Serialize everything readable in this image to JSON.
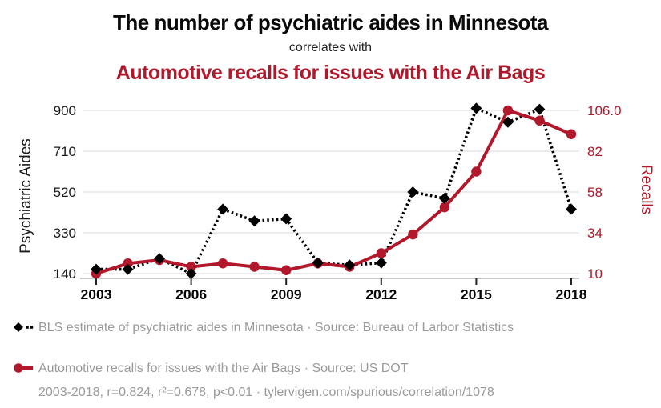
{
  "header": {
    "title_top": "The number of psychiatric aides in Minnesota",
    "connector": "correlates with",
    "title_bottom": "Automotive recalls for issues with the Air Bags"
  },
  "colors": {
    "series_black": "#000000",
    "series_red": "#b2182b",
    "legend_gray": "#9a9a9a",
    "gridline": "#e6e6e6",
    "axis_line": "#c9c9c9",
    "tick_mark": "#222222"
  },
  "chart_data": {
    "type": "line",
    "title": "The number of psychiatric aides in Minnesota correlates with Automotive recalls for issues with the Air Bags",
    "x": [
      2003,
      2004,
      2005,
      2006,
      2007,
      2008,
      2009,
      2010,
      2011,
      2012,
      2013,
      2014,
      2015,
      2016,
      2017,
      2018
    ],
    "x_ticks": [
      2003,
      2006,
      2009,
      2012,
      2015,
      2018
    ],
    "grid": true,
    "legend_position": "bottom",
    "left_axis": {
      "label": "Psychiatric Aides",
      "ticks": [
        140,
        330,
        520,
        710,
        900
      ],
      "tick_labels": [
        "140",
        "330",
        "520",
        "710",
        "900"
      ],
      "range": [
        140,
        900
      ]
    },
    "right_axis": {
      "label": "Recalls",
      "ticks": [
        10,
        34,
        58,
        82,
        106
      ],
      "tick_labels": [
        "10",
        "34",
        "58",
        "82",
        "106.0"
      ],
      "range": [
        10,
        106
      ]
    },
    "series": [
      {
        "name": "BLS estimate of psychiatric aides in Minnesota",
        "axis": "left",
        "color": "#000000",
        "line_style": "dotted",
        "marker": "diamond",
        "values": [
          160,
          160,
          210,
          140,
          440,
          385,
          395,
          190,
          180,
          190,
          520,
          490,
          910,
          845,
          905,
          440
        ]
      },
      {
        "name": "Automotive recalls for issues with the Air Bags",
        "axis": "right",
        "color": "#b2182b",
        "line_style": "solid",
        "marker": "circle",
        "values": [
          10,
          16,
          18,
          14,
          16,
          14,
          12,
          16,
          14,
          22,
          33,
          49,
          70,
          106,
          100,
          92
        ]
      }
    ]
  },
  "legend": {
    "items": [
      {
        "label": "BLS estimate of psychiatric aides in Minnesota · Source: Bureau of Larbor Statistics"
      },
      {
        "label": "Automotive recalls for issues with the Air Bags · Source: US DOT"
      }
    ]
  },
  "footnote": "2003-2018, r=0.824, r²=0.678, p<0.01 · tylervigen.com/spurious/correlation/1078"
}
